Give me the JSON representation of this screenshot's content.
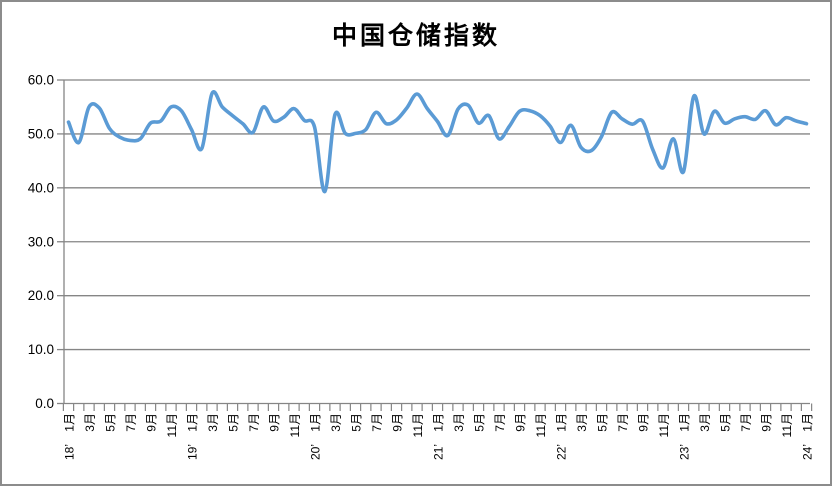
{
  "chart_data": {
    "type": "line",
    "title": "中国仓储指数",
    "xlabel": "",
    "ylabel": "",
    "ylim": [
      0,
      60
    ],
    "y_tick_step": 10,
    "y_tick_labels": [
      "0.0",
      "10.0",
      "20.0",
      "30.0",
      "40.0",
      "50.0",
      "60.0"
    ],
    "grid": true,
    "legend": "none",
    "smoothed": true,
    "line_color": "#5B9BD5",
    "axis_color": "#858585",
    "x_tick_labels": [
      "1月",
      "3月",
      "5月",
      "7月",
      "9月",
      "11月",
      "1月",
      "3月",
      "5月",
      "7月",
      "9月",
      "11月",
      "1月",
      "3月",
      "5月",
      "7月",
      "9月",
      "11月",
      "1月",
      "3月",
      "5月",
      "7月",
      "9月",
      "11月",
      "1月",
      "3月",
      "5月",
      "7月",
      "9月",
      "11月",
      "1月",
      "3月",
      "5月",
      "7月",
      "9月",
      "11月",
      "1月"
    ],
    "year_labels": [
      "18’",
      "19’",
      "20’",
      "21’",
      "22’",
      "23’",
      "24’"
    ],
    "categories": [
      "18'1月",
      "18'2月",
      "18'3月",
      "18'4月",
      "18'5月",
      "18'6月",
      "18'7月",
      "18'8月",
      "18'9月",
      "18'10月",
      "18'11月",
      "18'12月",
      "19'1月",
      "19'2月",
      "19'3月",
      "19'4月",
      "19'5月",
      "19'6月",
      "19'7月",
      "19'8月",
      "19'9月",
      "19'10月",
      "19'11月",
      "19'12月",
      "20'1月",
      "20'2月",
      "20'3月",
      "20'4月",
      "20'5月",
      "20'6月",
      "20'7月",
      "20'8月",
      "20'9月",
      "20'10月",
      "20'11月",
      "20'12月",
      "21'1月",
      "21'2月",
      "21'3月",
      "21'4月",
      "21'5月",
      "21'6月",
      "21'7月",
      "21'8月",
      "21'9月",
      "21'10月",
      "21'11月",
      "21'12月",
      "22'1月",
      "22'2月",
      "22'3月",
      "22'4月",
      "22'5月",
      "22'6月",
      "22'7月",
      "22'8月",
      "22'9月",
      "22'10月",
      "22'11月",
      "22'12月",
      "23'1月",
      "23'2月",
      "23'3月",
      "23'4月",
      "23'5月",
      "23'6月",
      "23'7月",
      "23'8月",
      "23'9月",
      "23'10月",
      "23'11月",
      "23'12月",
      "24'1月"
    ],
    "values": [
      52.2,
      48.4,
      55.0,
      54.8,
      51.0,
      49.4,
      48.8,
      49.1,
      52.0,
      52.4,
      55.0,
      54.3,
      50.8,
      47.3,
      57.5,
      55.0,
      53.4,
      51.9,
      50.3,
      55.0,
      52.4,
      53.1,
      54.7,
      52.5,
      51.3,
      39.3,
      53.6,
      50.1,
      50.1,
      50.8,
      54.0,
      51.9,
      52.6,
      54.8,
      57.4,
      54.7,
      52.3,
      49.7,
      54.6,
      55.3,
      52.0,
      53.4,
      49.1,
      51.4,
      54.2,
      54.3,
      53.4,
      51.4,
      48.4,
      51.6,
      47.5,
      46.9,
      49.5,
      54.0,
      52.8,
      51.8,
      52.4,
      47.1,
      43.7,
      49.1,
      43.0,
      57.0,
      50.0,
      54.2,
      52.0,
      52.8,
      53.2,
      52.7,
      54.3,
      51.7,
      53.0,
      52.4,
      51.9
    ]
  }
}
